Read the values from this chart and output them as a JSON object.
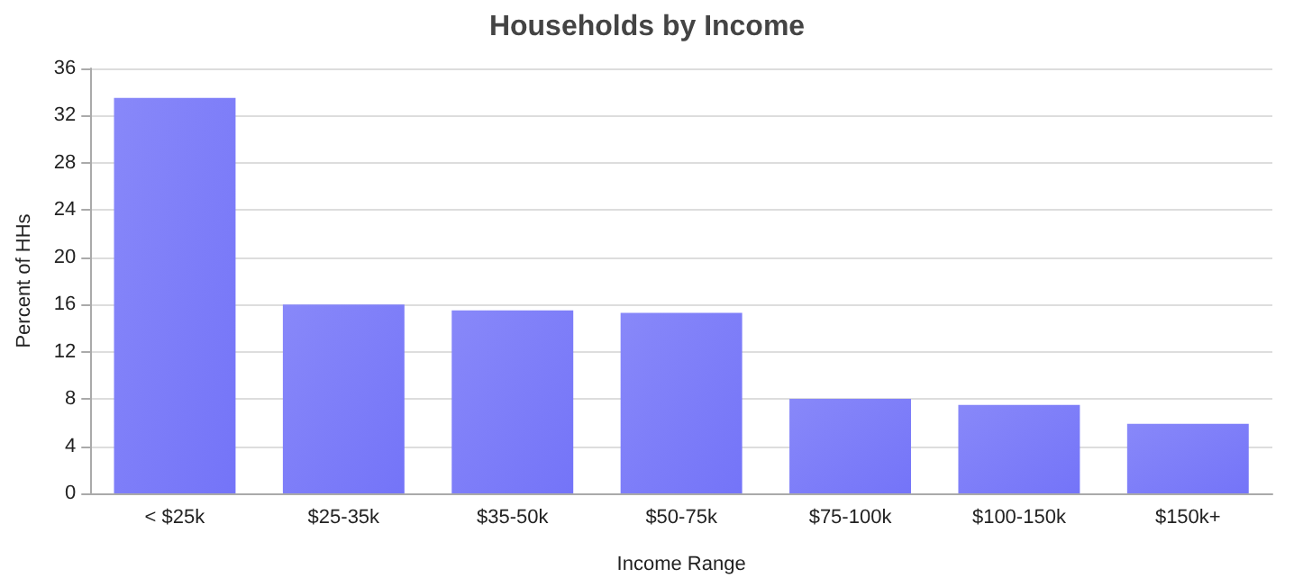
{
  "chart_data": {
    "type": "bar",
    "title": "Households by Income",
    "xlabel": "Income Range",
    "ylabel": "Percent of HHs",
    "categories": [
      "< $25k",
      "$25-35k",
      "$35-50k",
      "$50-75k",
      "$75-100k",
      "$100-150k",
      "$150k+"
    ],
    "values": [
      33.5,
      16.0,
      15.5,
      15.3,
      8.0,
      7.5,
      5.9
    ],
    "color": "#7474f8",
    "ylim": [
      0,
      36
    ],
    "yticks": [
      0,
      4,
      8,
      12,
      16,
      20,
      24,
      28,
      32,
      36
    ],
    "grid": "y"
  }
}
